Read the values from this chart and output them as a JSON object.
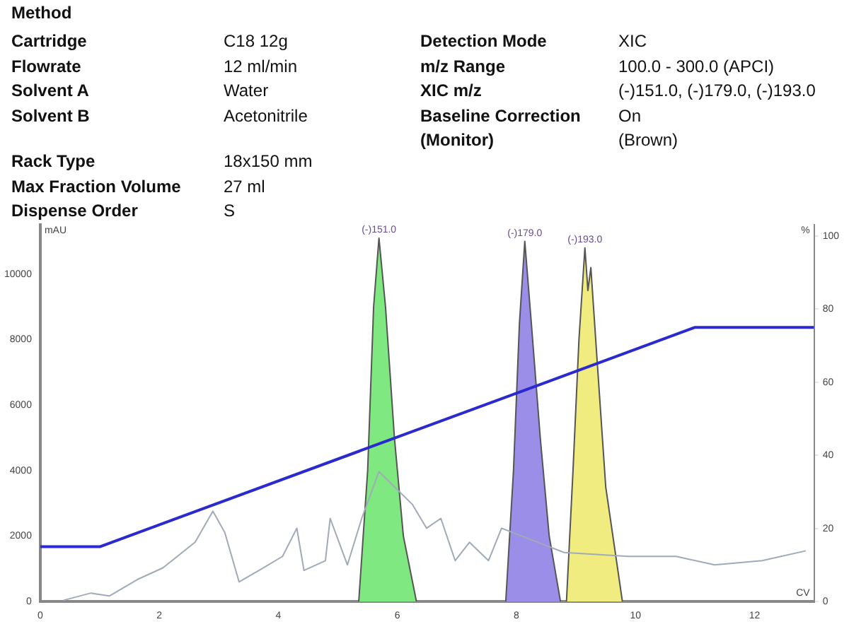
{
  "chart_data": [
    {
      "type": "other",
      "title": "Method",
      "annotations": [
        "Cartridge",
        "C18 12g",
        "Flowrate",
        "12 ml/min",
        "Solvent A",
        "Water",
        "Solvent B",
        "Acetonitrile"
      ]
    },
    {
      "type": "other",
      "annotations": [
        "Detection Mode",
        "XIC",
        "m/z Range",
        "100.0 - 300.0 (APCI)",
        "XIC m/z",
        "(-)151.0, (-)179.0, (-)193.0",
        "Baseline Correction",
        "On",
        "(Monitor)",
        "(Brown)"
      ]
    },
    {
      "type": "other",
      "annotations": [
        "Rack Type",
        "18x150 mm",
        "Max Fraction Volume",
        "27 ml",
        "Dispense Order",
        "S"
      ]
    },
    {
      "type": "line",
      "xlabel": "CV",
      "ylabel": "mAU",
      "y2label": "%",
      "xlim": [
        0,
        13
      ],
      "xticks": [
        0,
        2,
        4,
        6,
        8,
        10,
        12
      ],
      "ylim": [
        0,
        11500
      ],
      "yticks": [
        0,
        2000,
        4000,
        6000,
        8000,
        10000
      ],
      "y2lim": [
        0,
        103
      ],
      "y2ticks": [
        0,
        20,
        40,
        60,
        80,
        100
      ],
      "grid": false,
      "legend": false,
      "marker": "none",
      "line_style": "solid",
      "series": [
        {
          "type": "line",
          "color": "#a0aab8",
          "x": [
            0.39,
            0.85,
            1.16,
            1.65,
            2.06,
            2.6,
            2.9,
            3.1,
            3.34,
            3.75,
            4.07,
            4.31,
            4.43,
            4.79,
            4.87,
            5.16,
            5.4,
            5.69,
            6.25,
            6.49,
            6.73,
            6.97,
            7.21,
            7.53,
            7.75,
            8.8,
            9.88,
            10.68,
            11.33,
            12.13,
            12.86
          ],
          "values": [
            40,
            260,
            170,
            690,
            1030,
            1810,
            2760,
            2110,
            600,
            1030,
            1380,
            2240,
            950,
            1250,
            2540,
            1120,
            2540,
            3970,
            2970,
            2240,
            2540,
            1250,
            1810,
            1250,
            2240,
            1500,
            1380,
            1380,
            1120,
            1250,
            1550
          ]
        },
        {
          "type": "area",
          "color": "#80e880",
          "x": [
            5.35,
            5.5,
            5.6,
            5.69,
            5.8,
            5.95,
            6.1,
            6.32
          ],
          "values": [
            0,
            4000,
            9000,
            11100,
            9000,
            5000,
            2000,
            0
          ]
        },
        {
          "type": "area",
          "color": "#9a8ee8",
          "x": [
            7.82,
            7.95,
            8.05,
            8.14,
            8.25,
            8.4,
            8.55,
            8.74
          ],
          "values": [
            0,
            4000,
            8500,
            11000,
            8500,
            5000,
            2000,
            0
          ]
        },
        {
          "type": "area",
          "color": "#f0ec80",
          "x": [
            8.84,
            8.95,
            9.05,
            9.15,
            9.2,
            9.25,
            9.35,
            9.5,
            9.78
          ],
          "values": [
            0,
            4000,
            8000,
            10800,
            9500,
            10200,
            7500,
            3500,
            0
          ]
        },
        {
          "type": "line",
          "axis": "y2",
          "color": "#2a2ad0",
          "x": [
            0,
            1,
            11,
            13
          ],
          "values": [
            15,
            15,
            75,
            75
          ]
        }
      ],
      "annotations": [
        {
          "text": "(-)151.0",
          "x": 5.69,
          "y": 11100
        },
        {
          "text": "(-)179.0",
          "x": 8.14,
          "y": 11000
        },
        {
          "text": "(-)193.0",
          "x": 9.15,
          "y": 10800
        }
      ]
    }
  ]
}
